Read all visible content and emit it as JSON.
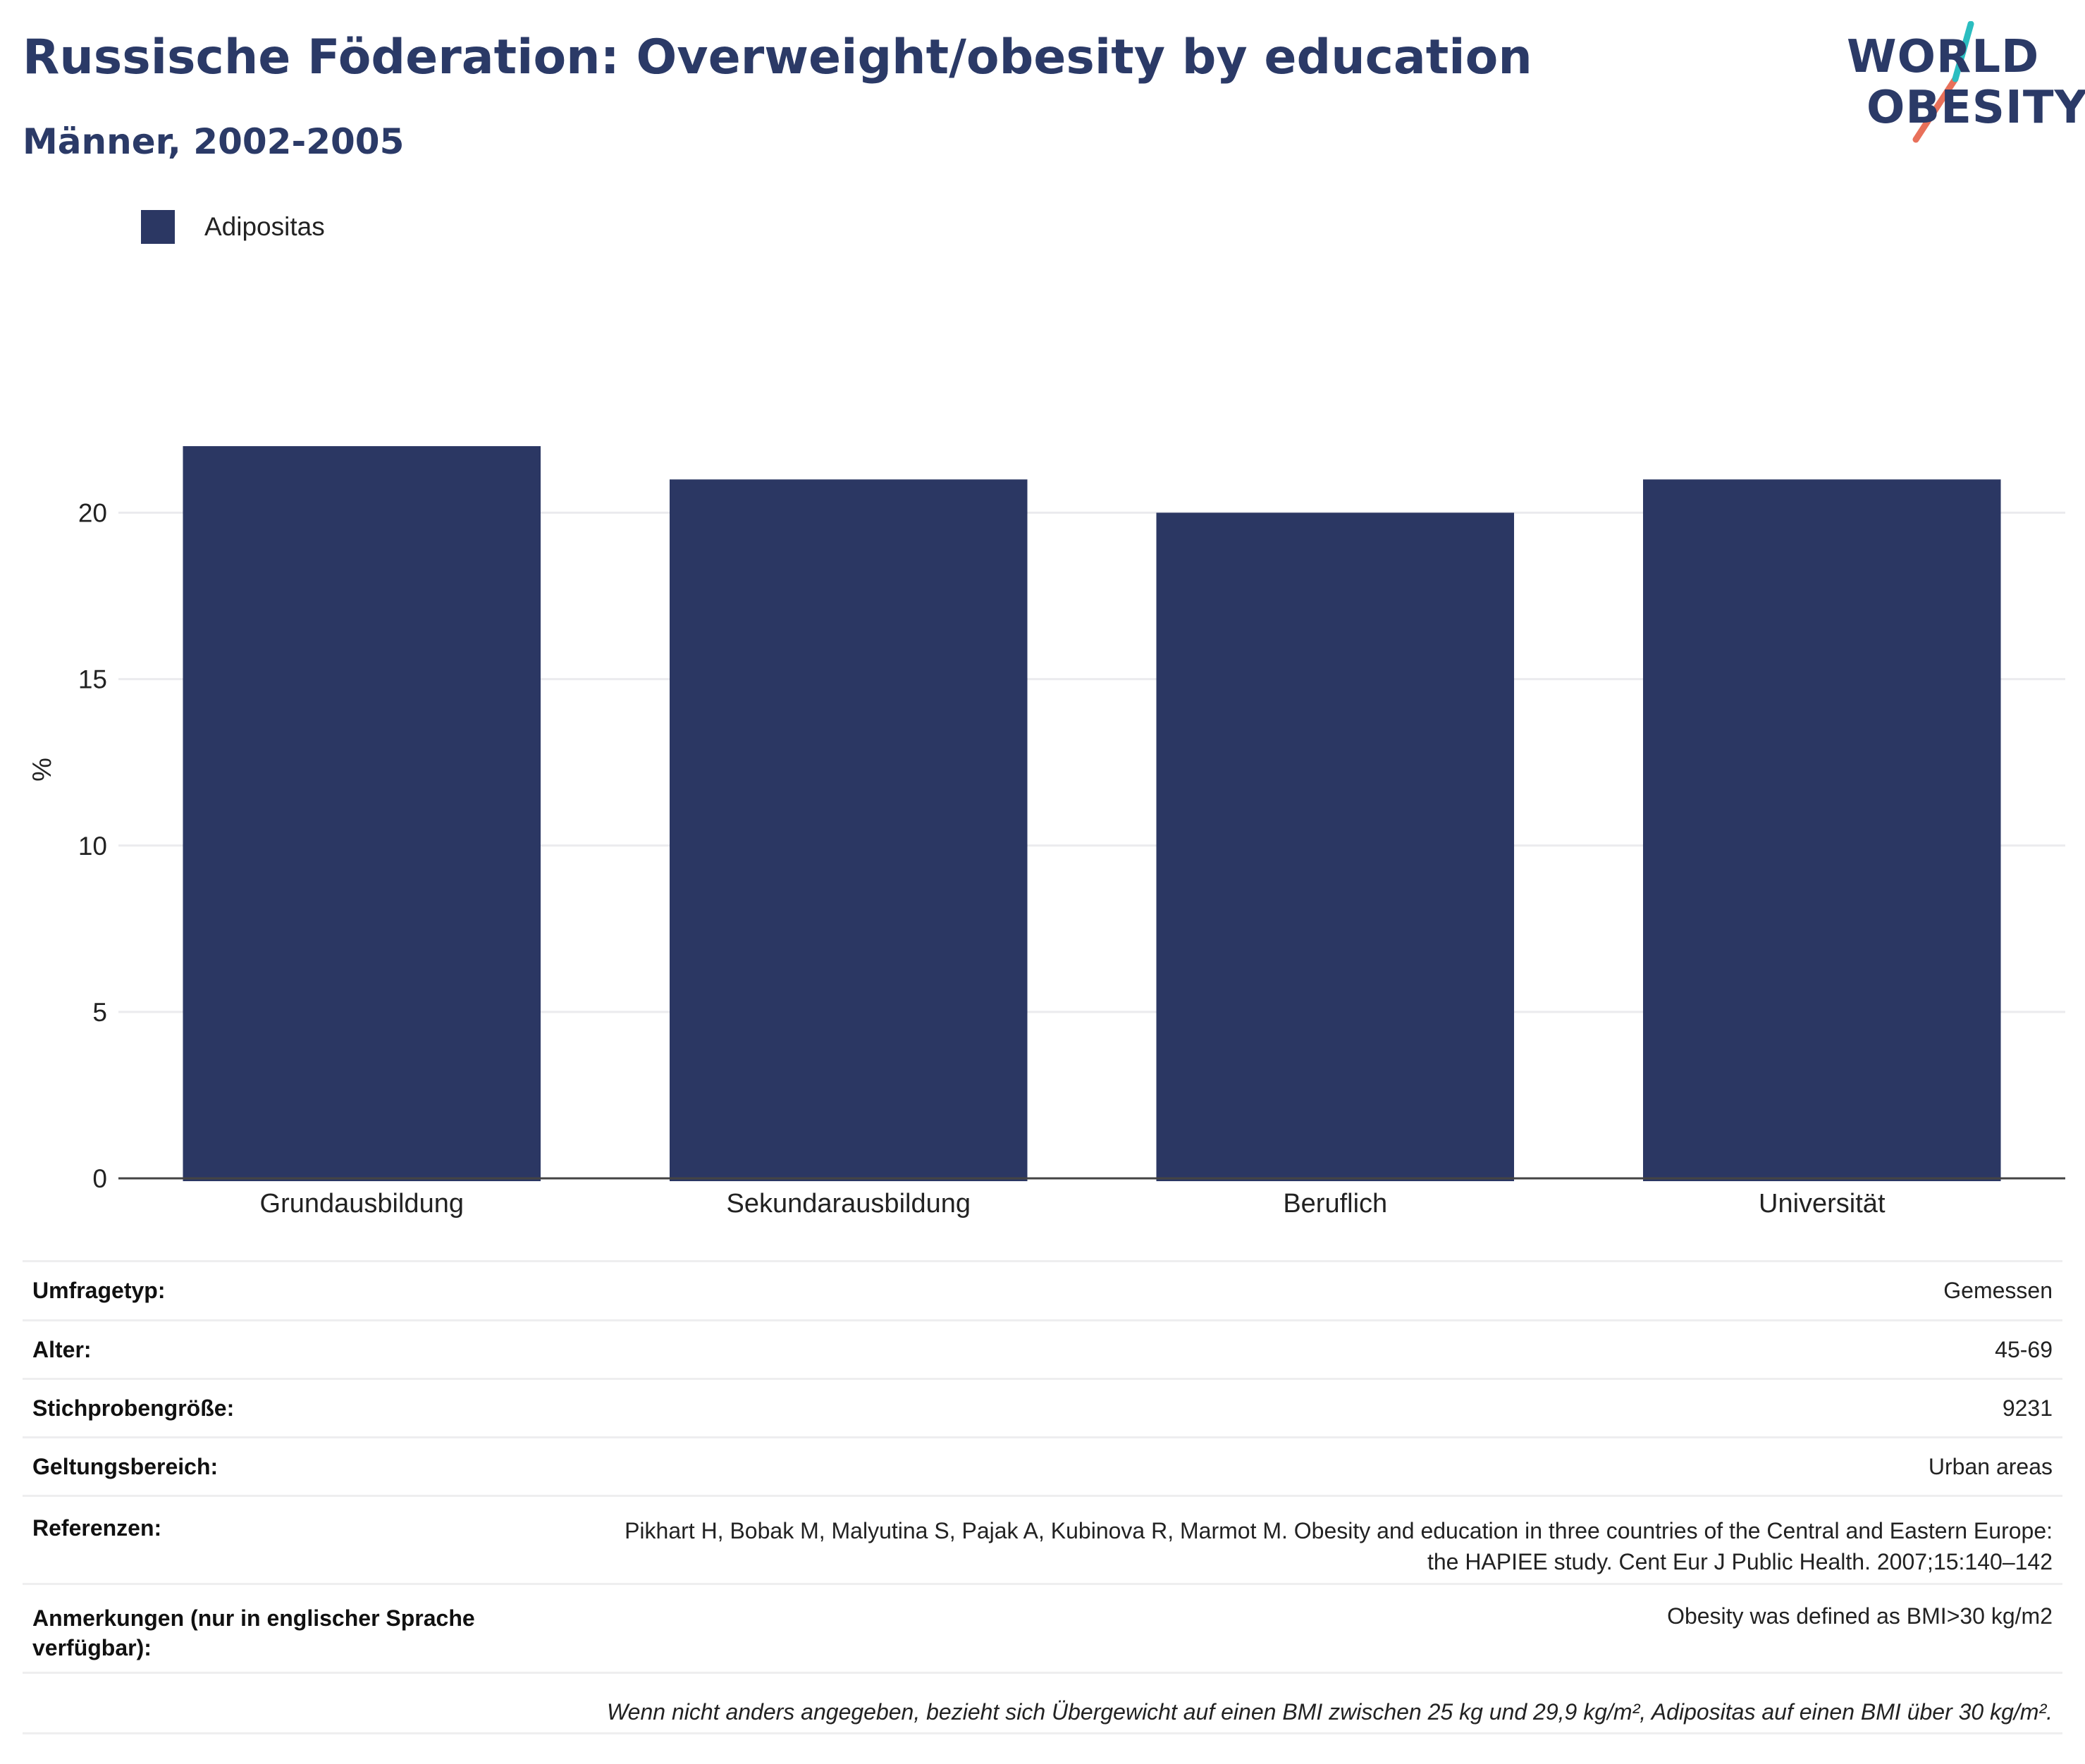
{
  "header": {
    "title": "Russische Föderation: Overweight/obesity by education",
    "subtitle": "Männer, 2002-2005"
  },
  "logo": {
    "line1": "WORLD",
    "line2": "OBESITY",
    "accent_teal": "#2bbdc0",
    "accent_coral": "#e8705a"
  },
  "legend": {
    "label": "Adipositas",
    "color": "#2b3763"
  },
  "chart_data": {
    "type": "bar",
    "categories": [
      "Grundausbildung",
      "Sekundarausbildung",
      "Beruflich",
      "Universität"
    ],
    "series": [
      {
        "name": "Adipositas",
        "values": [
          22,
          21,
          20,
          21
        ],
        "color": "#2b3763"
      }
    ],
    "ylabel": "%",
    "xlabel": "",
    "ylim": [
      0,
      24.5
    ],
    "yticks": [
      0,
      5,
      10,
      15,
      20
    ],
    "grid": true,
    "legend_position": "top-left"
  },
  "meta": {
    "rows": [
      {
        "label": "Umfragetyp:",
        "value": "Gemessen"
      },
      {
        "label": "Alter:",
        "value": "45-69"
      },
      {
        "label": "Stichprobengröße:",
        "value": "9231"
      },
      {
        "label": "Geltungsbereich:",
        "value": "Urban areas"
      },
      {
        "label": "Referenzen:",
        "value": "Pikhart H, Bobak M, Malyutina S, Pajak A, Kubinova R, Marmot M. Obesity and education in three countries of the Central and Eastern Europe: the HAPIEE study. Cent Eur J Public Health. 2007;15:140–142"
      },
      {
        "label": "Anmerkungen (nur in englischer Sprache verfügbar):",
        "value": "Obesity was defined as BMI>30 kg/m2"
      }
    ],
    "footnote": "Wenn nicht anders angegeben, bezieht sich Übergewicht auf einen BMI zwischen 25 kg und 29,9 kg/m², Adipositas auf einen BMI über 30 kg/m²."
  }
}
